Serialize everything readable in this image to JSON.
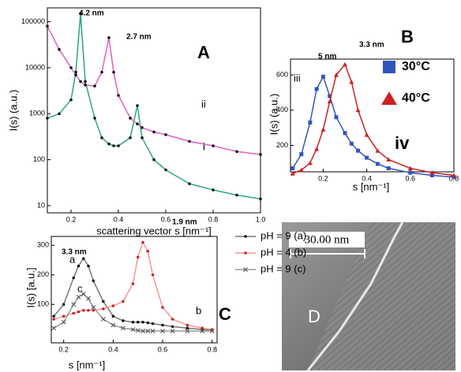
{
  "chart_data": [
    {
      "type": "scatter",
      "log_y": true,
      "xlabel": "scattering vector s [nm⁻¹]",
      "ylabel": "I(s) (a.u.)",
      "annotations": [
        "4.2 nm",
        "2.7 nm",
        "A",
        "ii",
        "i"
      ],
      "x": [
        0.1,
        0.15,
        0.2,
        0.22,
        0.24,
        0.26,
        0.3,
        0.33,
        0.36,
        0.38,
        0.4,
        0.45,
        0.48,
        0.5,
        0.55,
        0.6,
        0.7,
        0.8,
        0.9,
        1.0
      ],
      "series": [
        {
          "color": "#111111",
          "fit_color": "#2aa876",
          "marker": "circle",
          "values": [
            800,
            1000,
            2000,
            8000,
            150000,
            5000,
            800,
            300,
            220,
            200,
            200,
            300,
            1500,
            300,
            100,
            60,
            30,
            22,
            17,
            14
          ]
        },
        {
          "color": "#111111",
          "fit_color": "#e060c0",
          "marker": "circle",
          "values": [
            80000,
            25000,
            10000,
            7000,
            5000,
            4200,
            4000,
            8000,
            45000,
            8000,
            2500,
            800,
            600,
            500,
            400,
            350,
            250,
            200,
            150,
            130
          ]
        }
      ],
      "xlim": [
        0.1,
        1.0
      ],
      "ylim": [
        7,
        200000
      ],
      "xticks": [
        0.2,
        0.4,
        0.6,
        0.8,
        {
          "value": 1,
          "label": "1.0"
        }
      ],
      "yticks": [
        10,
        100,
        1000,
        10000,
        100000
      ]
    },
    {
      "type": "scatter",
      "log_y": false,
      "xlabel": "s [nm⁻¹]",
      "ylabel": "I(s) (a.u.)",
      "annotations": [
        "5 nm",
        "3.3 nm",
        "B",
        "iii",
        "iv"
      ],
      "x": [
        0.06,
        0.1,
        0.14,
        0.17,
        0.2,
        0.23,
        0.26,
        0.3,
        0.33,
        0.36,
        0.4,
        0.45,
        0.5,
        0.6,
        0.7,
        0.8
      ],
      "series": [
        {
          "name": "30°C",
          "color": "#3355bb",
          "fit_color": "#3355bb",
          "marker": "square",
          "values": [
            70,
            150,
            330,
            520,
            590,
            480,
            360,
            270,
            210,
            170,
            130,
            95,
            70,
            45,
            30,
            20
          ]
        },
        {
          "name": "40°C",
          "color": "#cc2222",
          "fit_color": "#cc2222",
          "marker": "triangle",
          "values": [
            40,
            60,
            100,
            180,
            290,
            450,
            600,
            660,
            560,
            400,
            260,
            170,
            120,
            70,
            45,
            30
          ]
        }
      ],
      "xlim": [
        0.05,
        0.8
      ],
      "ylim": [
        50,
        690
      ],
      "xticks": [
        0.2,
        0.4,
        0.6,
        0.8
      ],
      "yticks": [
        200,
        400,
        600
      ]
    },
    {
      "type": "scatter",
      "log_y": false,
      "xlabel": "s [nm⁻¹]",
      "ylabel": "I(s) [a.u.]",
      "annotations": [
        "3.3 nm",
        "1.9 nm",
        "a",
        "b",
        "c",
        "C"
      ],
      "x": [
        0.16,
        0.2,
        0.24,
        0.26,
        0.28,
        0.3,
        0.32,
        0.36,
        0.4,
        0.44,
        0.48,
        0.5,
        0.52,
        0.54,
        0.56,
        0.6,
        0.64,
        0.7,
        0.76,
        0.8
      ],
      "series": [
        {
          "name": "pH = 9 (a)",
          "color": "#111111",
          "fit_color": "#777777",
          "marker": "circle",
          "values": [
            60,
            100,
            190,
            230,
            255,
            230,
            180,
            110,
            60,
            45,
            40,
            40,
            40,
            38,
            35,
            30,
            25,
            20,
            15,
            12
          ]
        },
        {
          "name": "pH = 4 (b)",
          "color": "#cc2222",
          "fit_color": "#ee9999",
          "marker": "circle",
          "values": [
            50,
            60,
            70,
            75,
            80,
            80,
            80,
            85,
            95,
            110,
            170,
            260,
            310,
            280,
            200,
            90,
            50,
            30,
            20,
            15
          ]
        },
        {
          "name": "pH = 9 (c)",
          "color": "#555555",
          "fit_color": "#999999",
          "marker": "cross",
          "values": [
            20,
            40,
            100,
            125,
            135,
            120,
            90,
            50,
            30,
            20,
            15,
            12,
            10,
            10,
            10,
            10,
            10,
            10,
            10,
            10
          ]
        }
      ],
      "xlim": [
        0.15,
        0.82
      ],
      "ylim": [
        -30,
        330
      ],
      "xticks": [
        0.2,
        0.4,
        0.6,
        0.8
      ],
      "yticks": [
        100,
        200,
        300
      ]
    }
  ],
  "panel_d": {
    "scale_label": "30.00 nm",
    "label": "D"
  }
}
